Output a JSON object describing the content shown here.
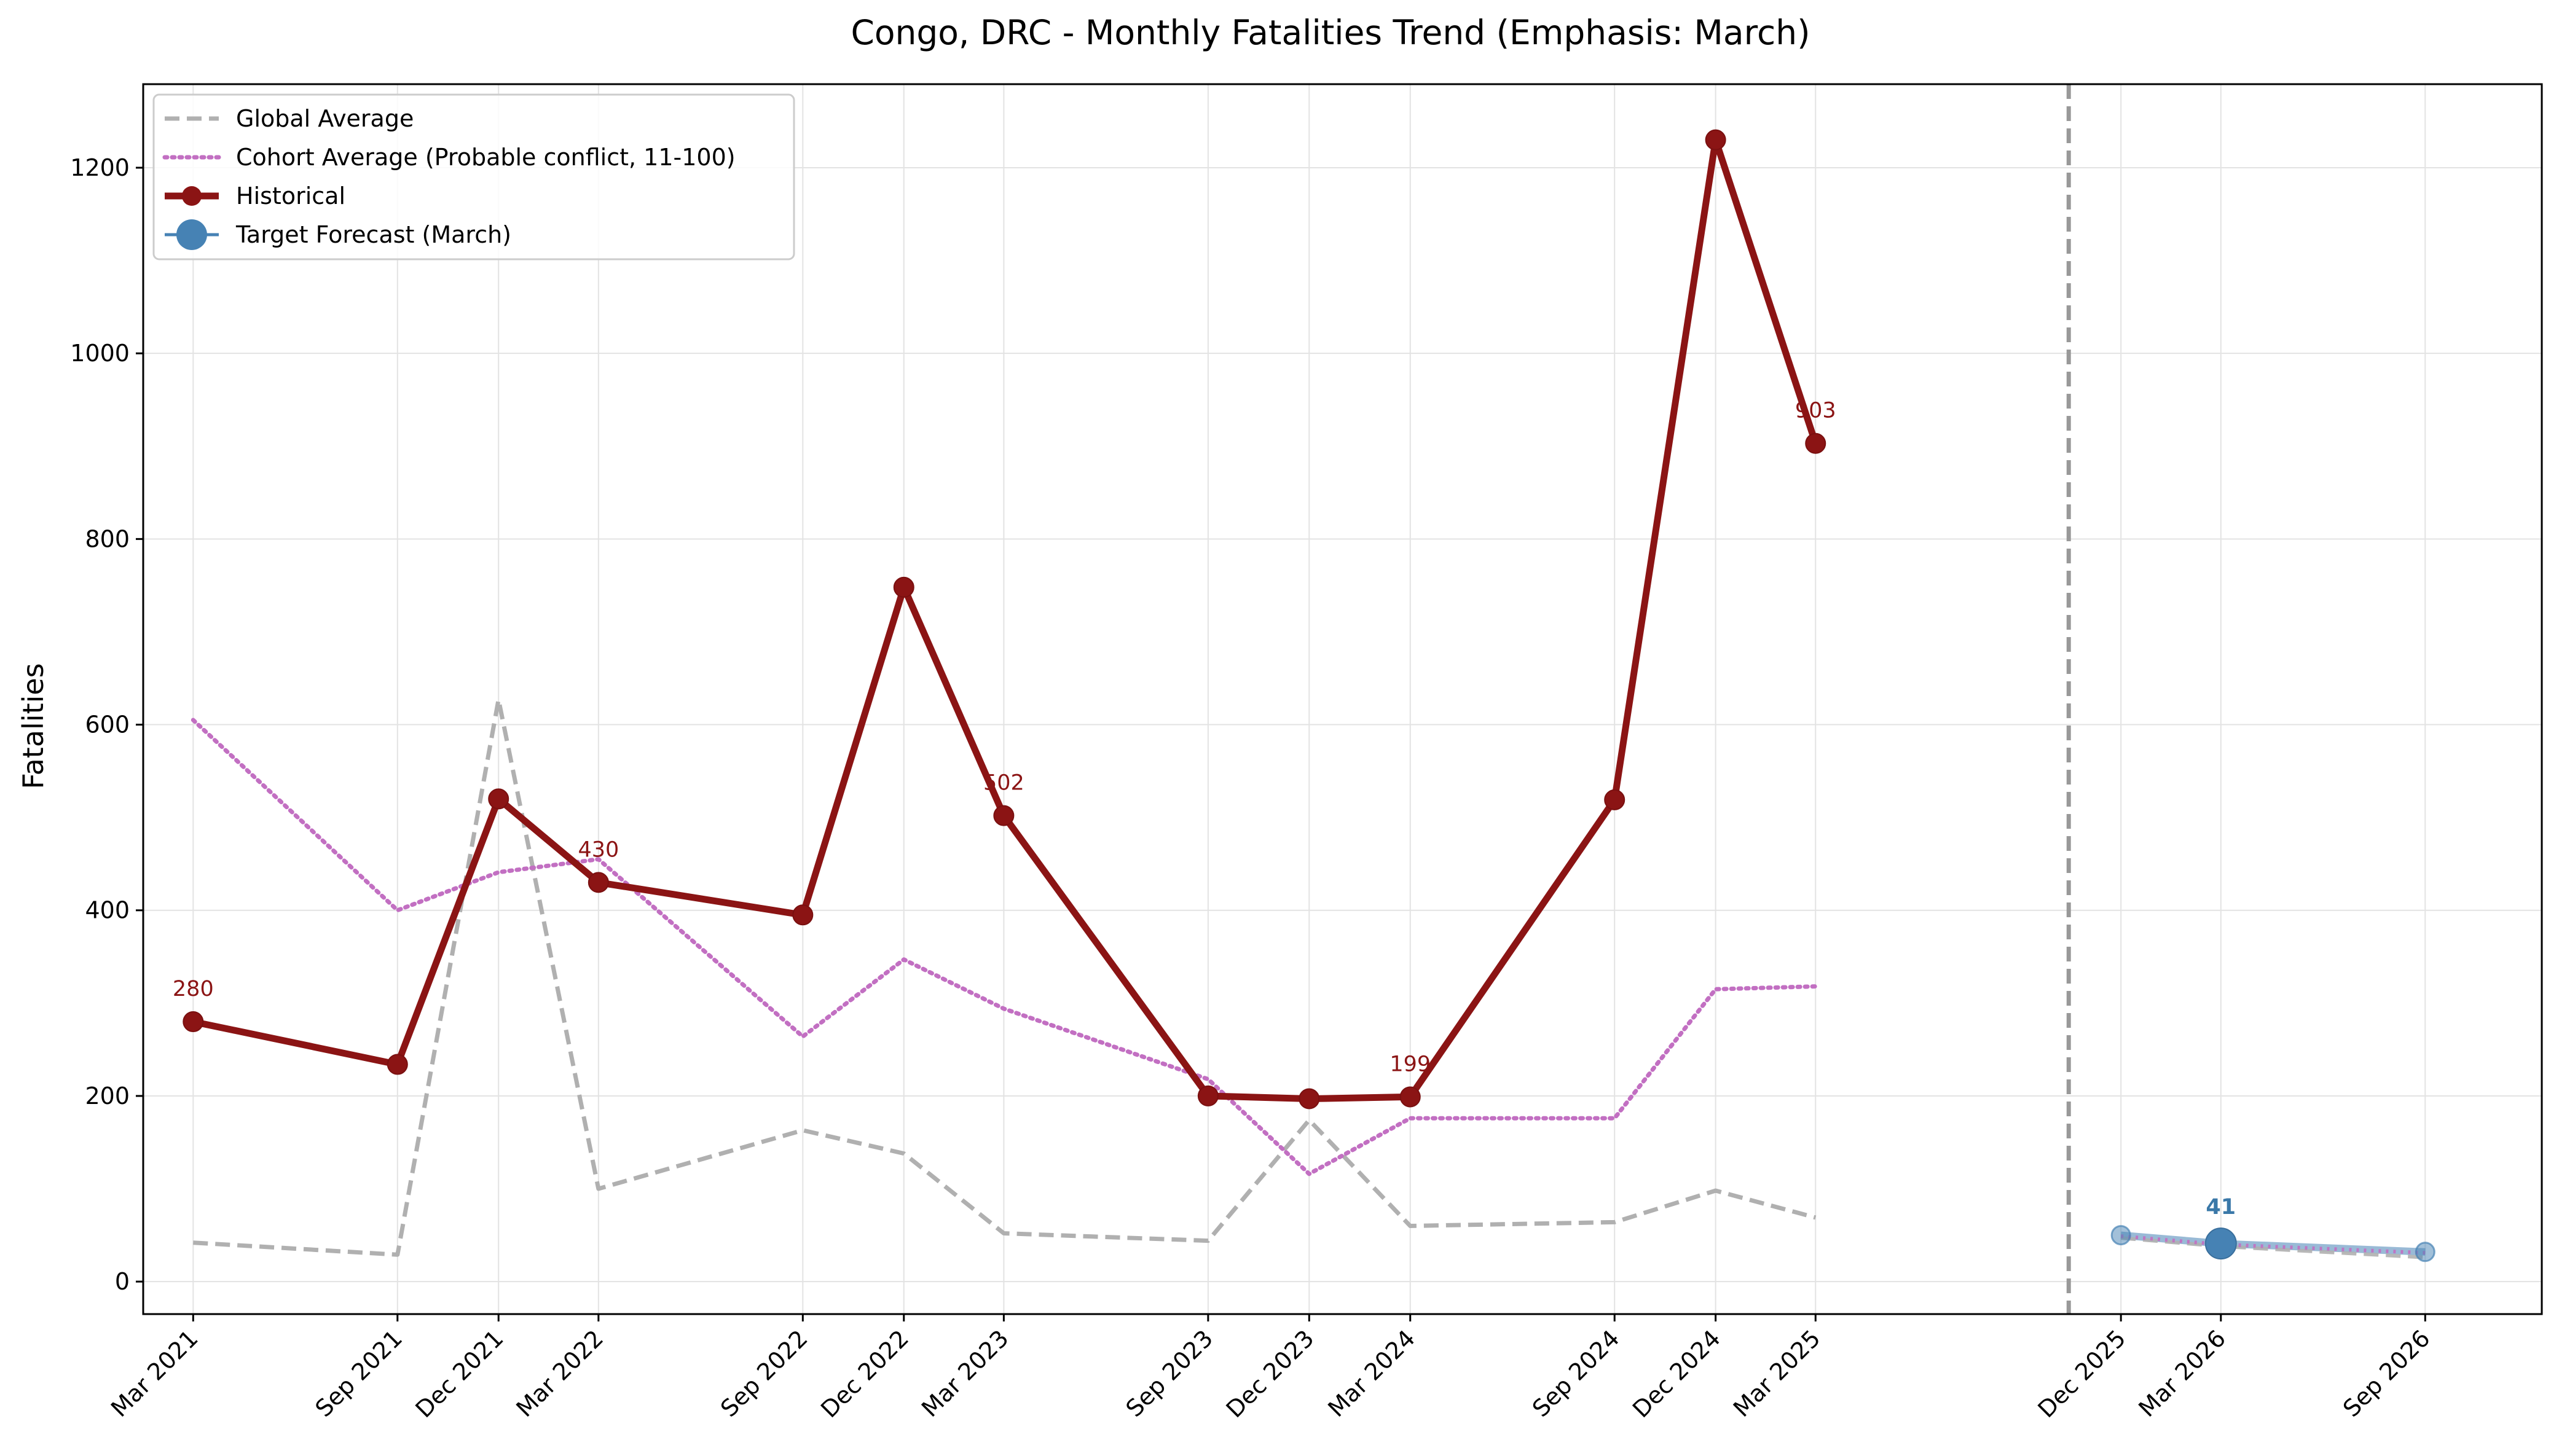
{
  "chart_data": {
    "type": "line",
    "title": "Congo, DRC - Monthly Fatalities Trend (Emphasis: March)",
    "xlabel": "",
    "ylabel": "Fatalities",
    "ylim": [
      -35,
      1290
    ],
    "yticks": [
      0,
      200,
      400,
      600,
      800,
      1000,
      1200
    ],
    "grid": true,
    "legend_position": "upper-left",
    "x_range": [
      "2021-01-15",
      "2026-12-15"
    ],
    "x_tick_dates": [
      "2021-03-01",
      "2021-09-01",
      "2021-12-01",
      "2022-03-01",
      "2022-09-01",
      "2022-12-01",
      "2023-03-01",
      "2023-09-01",
      "2023-12-01",
      "2024-03-01",
      "2024-09-01",
      "2024-12-01",
      "2025-03-01",
      "2025-12-01",
      "2026-03-01",
      "2026-09-01"
    ],
    "x_tick_labels": [
      "Mar 2021",
      "Sep 2021",
      "Dec 2021",
      "Mar 2022",
      "Sep 2022",
      "Dec 2022",
      "Mar 2023",
      "Sep 2023",
      "Dec 2023",
      "Mar 2024",
      "Sep 2024",
      "Dec 2024",
      "Mar 2025",
      "Dec 2025",
      "Mar 2026",
      "Sep 2026"
    ],
    "forecast_divider_date": "2025-10-15",
    "series": [
      {
        "name": "Global Average",
        "color": "#b0b0b0",
        "style": "dashed",
        "x": [
          "2021-03-01",
          "2021-09-01",
          "2021-12-01",
          "2022-03-01",
          "2022-09-01",
          "2022-12-01",
          "2023-03-01",
          "2023-09-01",
          "2023-12-01",
          "2024-03-01",
          "2024-09-01",
          "2024-12-01",
          "2025-03-01"
        ],
        "values": [
          42,
          29,
          627,
          100,
          163,
          138,
          52,
          44,
          174,
          60,
          64,
          98,
          69
        ]
      },
      {
        "name": "Cohort Average (Probable conflict, 11-100)",
        "color": "#c26fc2",
        "style": "dotted",
        "x": [
          "2021-03-01",
          "2021-09-01",
          "2021-12-01",
          "2022-03-01",
          "2022-09-01",
          "2022-12-01",
          "2023-03-01",
          "2023-09-01",
          "2023-12-01",
          "2024-03-01",
          "2024-09-01",
          "2024-12-01",
          "2025-03-01"
        ],
        "values": [
          605,
          400,
          441,
          455,
          264,
          347,
          294,
          218,
          116,
          176,
          176,
          315,
          318
        ]
      },
      {
        "name": "Historical",
        "color": "#8b1414",
        "style": "solid-markers",
        "x": [
          "2021-03-01",
          "2021-09-01",
          "2021-12-01",
          "2022-03-01",
          "2022-09-01",
          "2022-12-01",
          "2023-03-01",
          "2023-09-01",
          "2023-12-01",
          "2024-03-01",
          "2024-09-01",
          "2024-12-01",
          "2025-03-01"
        ],
        "values": [
          280,
          234,
          520,
          430,
          395,
          748,
          502,
          200,
          197,
          199,
          519,
          1230,
          903
        ]
      },
      {
        "name": "Target Forecast (March)",
        "color": "#4682b4",
        "style": "solid-markers",
        "x": [
          "2025-12-01",
          "2026-03-01",
          "2026-09-01"
        ],
        "values": [
          50,
          41,
          32
        ],
        "emphasis_index": 1
      }
    ],
    "forecast_extra_lines": [
      {
        "color": "#b0b0b0",
        "style": "dashed",
        "x": [
          "2025-12-01",
          "2026-03-01",
          "2026-09-01"
        ],
        "values": [
          47,
          38,
          26
        ]
      },
      {
        "color": "#c26fc2",
        "style": "dotted",
        "x": [
          "2025-12-01",
          "2026-03-01",
          "2026-09-01"
        ],
        "values": [
          49,
          40,
          31
        ]
      }
    ],
    "annotations": [
      {
        "text": "280",
        "x": "2021-03-01",
        "y": 280,
        "color": "#8b1414"
      },
      {
        "text": "430",
        "x": "2022-03-01",
        "y": 430,
        "color": "#8b1414"
      },
      {
        "text": "502",
        "x": "2023-03-01",
        "y": 502,
        "color": "#8b1414"
      },
      {
        "text": "199",
        "x": "2024-03-01",
        "y": 199,
        "color": "#8b1414"
      },
      {
        "text": "903",
        "x": "2025-03-01",
        "y": 903,
        "color": "#8b1414"
      },
      {
        "text": "41",
        "x": "2026-03-01",
        "y": 41,
        "color": "#3a78a8",
        "bold": true
      }
    ]
  }
}
